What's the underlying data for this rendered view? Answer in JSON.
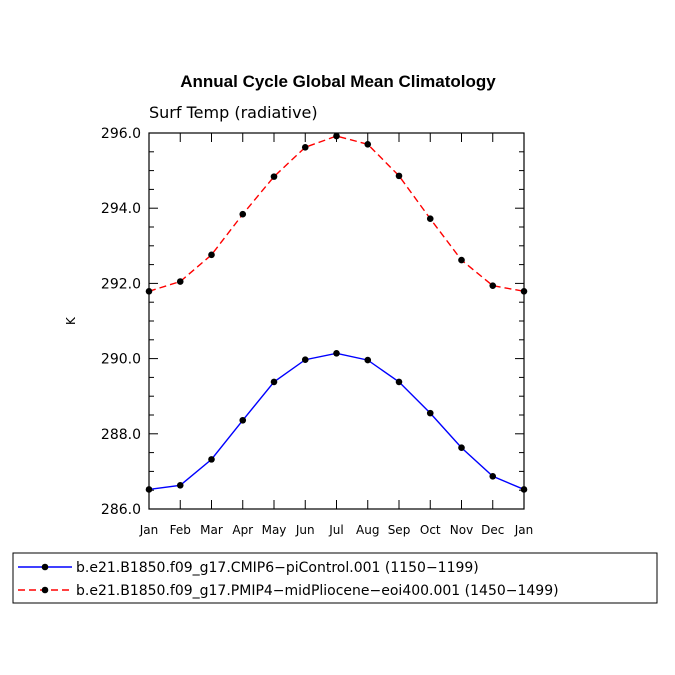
{
  "chart_data": {
    "type": "line",
    "title": "Annual Cycle Global Mean Climatology",
    "subtitle": "Surf Temp (radiative)",
    "xlabel": "",
    "ylabel": "K",
    "ylim": [
      286.0,
      296.0
    ],
    "yticks": [
      "286.0",
      "288.0",
      "290.0",
      "292.0",
      "294.0",
      "296.0"
    ],
    "categories": [
      "Jan",
      "Feb",
      "Mar",
      "Apr",
      "May",
      "Jun",
      "Jul",
      "Aug",
      "Sep",
      "Oct",
      "Nov",
      "Dec",
      "Jan"
    ],
    "grid": false,
    "legend_position": "bottom",
    "series": [
      {
        "name": "b.e21.B1850.f09_g17.CMIP6−piControl.001 (1150−1199)",
        "color": "#0000ff",
        "dash": "solid",
        "values": [
          286.52,
          286.63,
          287.32,
          288.36,
          289.38,
          289.97,
          290.14,
          289.96,
          289.38,
          288.55,
          287.63,
          286.87,
          286.52
        ]
      },
      {
        "name": "b.e21.B1850.f09_g17.PMIP4−midPliocene−eoi400.001 (1450−1499)",
        "color": "#ff0000",
        "dash": "dashed",
        "values": [
          291.79,
          292.05,
          292.76,
          293.84,
          294.84,
          295.62,
          295.92,
          295.7,
          294.86,
          293.72,
          292.62,
          291.94,
          291.79
        ]
      }
    ]
  }
}
